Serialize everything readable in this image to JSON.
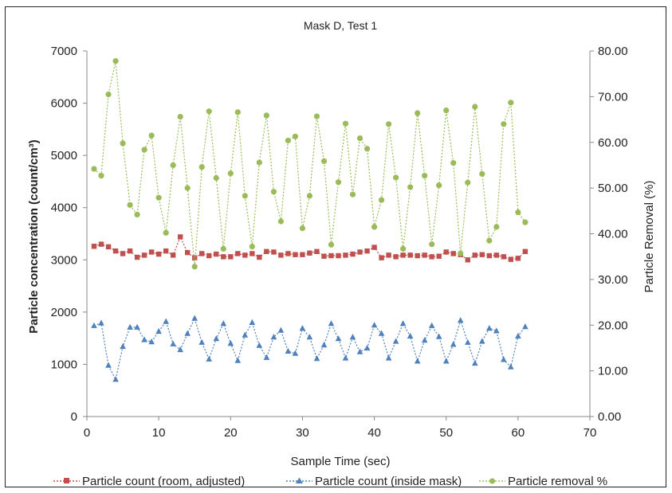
{
  "chart_data": {
    "type": "line",
    "title": "Mask D, Test 1",
    "xlabel": "Sample Time (sec)",
    "ylabel_left": "Particle concentration (count/cm³)",
    "ylabel_right": "Particle Removal (%)",
    "xlim": [
      0,
      70
    ],
    "ylim_left": [
      0,
      7000
    ],
    "ylim_right": [
      0,
      80
    ],
    "x_ticks": [
      "0",
      "10",
      "20",
      "30",
      "40",
      "50",
      "60",
      "70"
    ],
    "y_left_ticks": [
      "0",
      "1000",
      "2000",
      "3000",
      "4000",
      "5000",
      "6000",
      "7000"
    ],
    "y_right_ticks": [
      "0.00",
      "10.00",
      "20.00",
      "30.00",
      "40.00",
      "50.00",
      "60.00",
      "70.00",
      "80.00"
    ],
    "grid": false,
    "legend_position": "bottom",
    "x": [
      1,
      2,
      3,
      4,
      5,
      6,
      7,
      8,
      9,
      10,
      11,
      12,
      13,
      14,
      15,
      16,
      17,
      18,
      19,
      20,
      21,
      22,
      23,
      24,
      25,
      26,
      27,
      28,
      29,
      30,
      31,
      32,
      33,
      34,
      35,
      36,
      37,
      38,
      39,
      40,
      41,
      42,
      43,
      44,
      45,
      46,
      47,
      48,
      49,
      50,
      51,
      52,
      53,
      54,
      55,
      56,
      57,
      58,
      59,
      60,
      61
    ],
    "series": [
      {
        "name": "Particle count (room, adjusted)",
        "axis": "left",
        "color": "#c0504d",
        "marker": "square",
        "values": [
          3260,
          3300,
          3250,
          3170,
          3120,
          3170,
          3050,
          3090,
          3150,
          3110,
          3170,
          3090,
          3440,
          3140,
          3040,
          3120,
          3080,
          3110,
          3060,
          3060,
          3120,
          3090,
          3120,
          3050,
          3160,
          3150,
          3090,
          3120,
          3100,
          3100,
          3130,
          3160,
          3070,
          3080,
          3080,
          3090,
          3110,
          3150,
          3170,
          3240,
          3040,
          3090,
          3060,
          3090,
          3090,
          3080,
          3090,
          3060,
          3070,
          3150,
          3120,
          3100,
          3000,
          3090,
          3100,
          3080,
          3090,
          3060,
          3010,
          3030,
          3160
        ]
      },
      {
        "name": "Particle count (inside mask)",
        "axis": "left",
        "color": "#4f81bd",
        "marker": "triangle",
        "values": [
          1740,
          1790,
          980,
          710,
          1340,
          1710,
          1710,
          1470,
          1430,
          1630,
          1820,
          1390,
          1280,
          1590,
          1880,
          1420,
          1100,
          1490,
          1780,
          1400,
          1070,
          1560,
          1800,
          1360,
          1130,
          1520,
          1650,
          1250,
          1210,
          1690,
          1520,
          1110,
          1370,
          1780,
          1490,
          1120,
          1520,
          1240,
          1310,
          1750,
          1590,
          1120,
          1440,
          1780,
          1540,
          1060,
          1460,
          1740,
          1530,
          1060,
          1380,
          1840,
          1420,
          1020,
          1440,
          1690,
          1640,
          1090,
          950,
          1540,
          1720
        ]
      },
      {
        "name": "Particle removal %",
        "axis": "right",
        "color": "#9bbb59",
        "marker": "circle",
        "values": [
          54.2,
          52.7,
          70.5,
          77.8,
          59.8,
          46.3,
          44.2,
          58.4,
          61.5,
          47.9,
          40.2,
          55.0,
          65.6,
          50.0,
          32.8,
          54.6,
          66.8,
          52.2,
          36.7,
          53.2,
          66.6,
          48.3,
          37.2,
          55.6,
          65.9,
          49.2,
          42.7,
          60.4,
          61.3,
          41.2,
          48.3,
          65.7,
          55.9,
          37.6,
          51.3,
          64.1,
          48.6,
          60.9,
          58.6,
          41.5,
          47.4,
          64.0,
          52.3,
          36.7,
          50.2,
          66.4,
          52.7,
          37.7,
          50.6,
          67.0,
          55.5,
          35.7,
          51.2,
          67.8,
          53.1,
          38.5,
          41.5,
          64.0,
          68.7,
          44.7,
          42.5
        ]
      }
    ]
  }
}
